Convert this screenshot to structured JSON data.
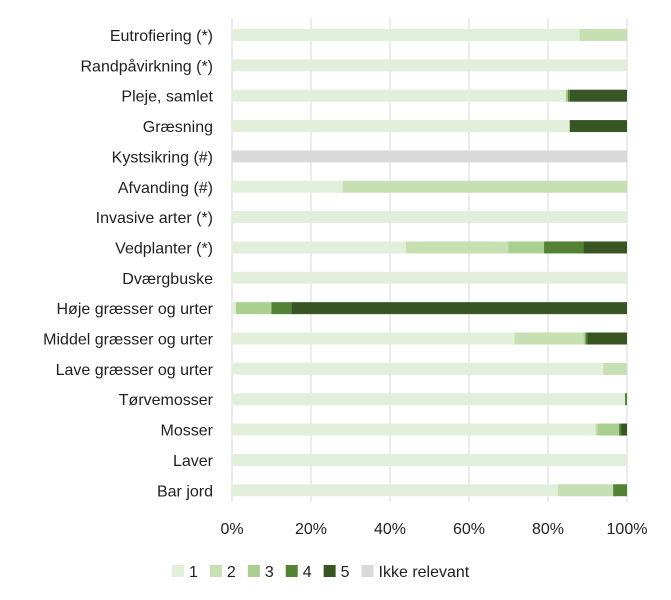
{
  "chart_data": {
    "type": "bar",
    "orientation": "horizontal",
    "stacked": "percent",
    "title": "",
    "xlabel": "",
    "ylabel": "",
    "xlim": [
      0,
      100
    ],
    "xticks": [
      "0%",
      "20%",
      "40%",
      "60%",
      "80%",
      "100%"
    ],
    "grid": "vertical",
    "legend_position": "bottom",
    "categories": [
      "Eutrofiering (*)",
      "Randpåvirkning (*)",
      "Pleje, samlet",
      "Græsning",
      "Kystsikring (#)",
      "Afvanding (#)",
      "Invasive arter (*)",
      "Vedplanter (*)",
      "Dværgbuske",
      "Høje græsser og urter",
      "Middel græsser og urter",
      "Lave græsser og urter",
      "Tørvemosser",
      "Mosser",
      "Laver",
      "Bar jord"
    ],
    "series": [
      {
        "name": "1",
        "color": "#e2efda",
        "values": [
          88,
          100,
          84.5,
          85.5,
          0,
          28,
          100,
          44,
          100,
          1,
          71.5,
          94,
          99.5,
          92,
          100,
          82.5
        ]
      },
      {
        "name": "2",
        "color": "#c6e0b4",
        "values": [
          12,
          0,
          0,
          0,
          0,
          72,
          0,
          26,
          0,
          0,
          17.5,
          6,
          0,
          0.5,
          0,
          14
        ]
      },
      {
        "name": "3",
        "color": "#a9d08e",
        "values": [
          0,
          0,
          0.5,
          0,
          0,
          0,
          0,
          9,
          0,
          9,
          0.5,
          0,
          0,
          5.5,
          0,
          0
        ]
      },
      {
        "name": "4",
        "color": "#548235",
        "values": [
          0,
          0,
          0.5,
          0,
          0,
          0,
          0,
          10,
          0,
          5,
          0.5,
          0,
          0.5,
          0.5,
          0,
          3.5
        ]
      },
      {
        "name": "5",
        "color": "#375623",
        "values": [
          0,
          0,
          14.5,
          14.5,
          0,
          0,
          0,
          11,
          0,
          85,
          10,
          0,
          0,
          1.5,
          0,
          0
        ]
      },
      {
        "name": "Ikke relevant",
        "color": "#d9d9d9",
        "values": [
          0,
          0,
          0,
          0,
          100,
          0,
          0,
          0,
          0,
          0,
          0,
          0,
          0,
          0,
          0,
          0
        ]
      }
    ]
  }
}
